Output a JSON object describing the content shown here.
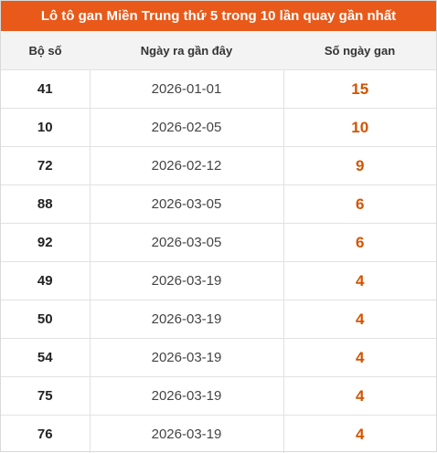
{
  "title": "Lô tô gan Miền Trung thứ 5 trong 10 lần quay gần nhất",
  "headers": {
    "col1": "Bộ số",
    "col2": "Ngày ra gần đây",
    "col3": "Số ngày gan"
  },
  "colors": {
    "header_bg": "#e8591a",
    "highlight": "#d35400"
  },
  "rows": [
    {
      "number": "41",
      "date": "2026-01-01",
      "days": "15"
    },
    {
      "number": "10",
      "date": "2026-02-05",
      "days": "10"
    },
    {
      "number": "72",
      "date": "2026-02-12",
      "days": "9"
    },
    {
      "number": "88",
      "date": "2026-03-05",
      "days": "6"
    },
    {
      "number": "92",
      "date": "2026-03-05",
      "days": "6"
    },
    {
      "number": "49",
      "date": "2026-03-19",
      "days": "4"
    },
    {
      "number": "50",
      "date": "2026-03-19",
      "days": "4"
    },
    {
      "number": "54",
      "date": "2026-03-19",
      "days": "4"
    },
    {
      "number": "75",
      "date": "2026-03-19",
      "days": "4"
    },
    {
      "number": "76",
      "date": "2026-03-19",
      "days": "4"
    }
  ]
}
